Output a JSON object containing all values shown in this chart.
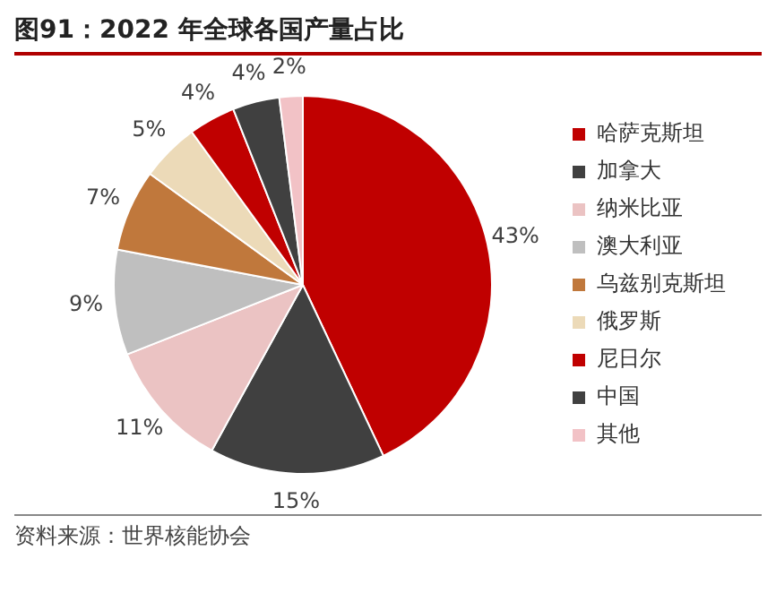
{
  "chart_data": {
    "type": "pie",
    "title": "图91：2022 年全球各国产量占比",
    "categories": [
      "哈萨克斯坦",
      "加拿大",
      "纳米比亚",
      "澳大利亚",
      "乌兹别克斯坦",
      "俄罗斯",
      "尼日尔",
      "中国",
      "其他"
    ],
    "values": [
      43,
      15,
      11,
      9,
      7,
      5,
      4,
      4,
      2
    ],
    "value_labels": [
      "43%",
      "15%",
      "11%",
      "9%",
      "7%",
      "5%",
      "4%",
      "4%",
      "2%"
    ],
    "colors": [
      "#c00000",
      "#404040",
      "#ebc3c3",
      "#bfbfbf",
      "#c0783c",
      "#ecdab8",
      "#c00000",
      "#404040",
      "#f2c2c6"
    ],
    "legend": "right",
    "annotations": [
      "资料来源：世界核能协会"
    ]
  }
}
